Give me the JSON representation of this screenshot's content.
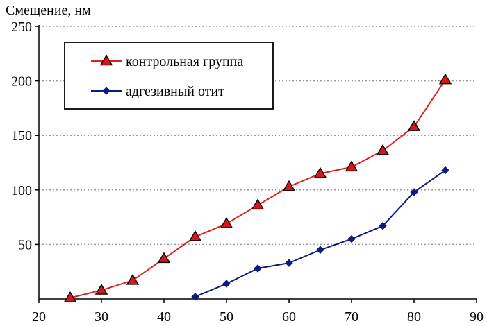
{
  "chart_data": {
    "type": "line",
    "title": "",
    "xlabel": "",
    "ylabel": "Смещение, нм",
    "xlim": [
      20,
      90
    ],
    "ylim": [
      0,
      250
    ],
    "x_ticks": [
      20,
      30,
      40,
      50,
      60,
      70,
      80,
      90
    ],
    "y_ticks": [
      50,
      100,
      150,
      200,
      250
    ],
    "grid": true,
    "legend_position": "top-left",
    "series": [
      {
        "name": "контрольная группа",
        "color": "#e0201b",
        "marker": "triangle",
        "marker_fill": "#d8141c",
        "x": [
          25,
          30,
          35,
          40,
          45,
          50,
          55,
          60,
          65,
          70,
          75,
          80,
          85
        ],
        "y": [
          1,
          8,
          17,
          37,
          57,
          69,
          86,
          103,
          115,
          121,
          136,
          158,
          201
        ]
      },
      {
        "name": "адгезивный отит",
        "color": "#0d1a7f",
        "marker": "diamond",
        "marker_fill": "#0d1a7f",
        "x": [
          45,
          50,
          55,
          60,
          65,
          70,
          75,
          80,
          85
        ],
        "y": [
          2,
          14,
          28,
          33,
          45,
          55,
          67,
          98,
          118
        ]
      }
    ]
  }
}
